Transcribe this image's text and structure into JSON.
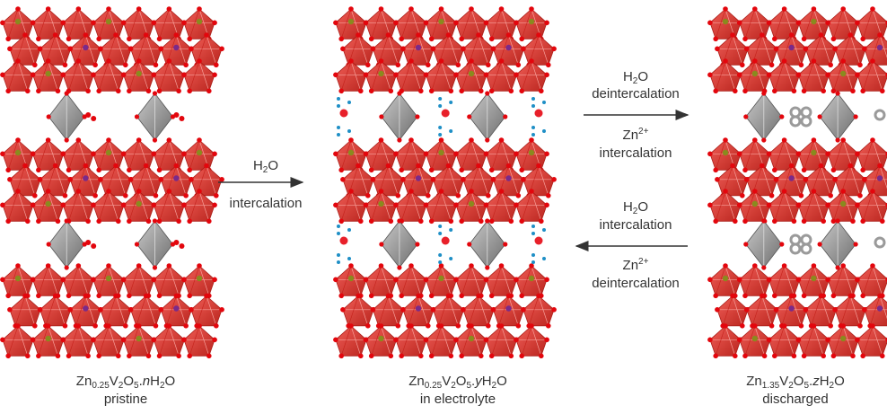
{
  "panels": [
    {
      "id": "pristine",
      "formula": {
        "el1": "Zn",
        "sub1": "0.25",
        "el2": "V",
        "sub2": "2",
        "el3": "O",
        "sub3": "5",
        "sep": ".",
        "var": "n",
        "el4": "H",
        "sub4": "2",
        "el5": "O"
      },
      "label": "pristine"
    },
    {
      "id": "electrolyte",
      "formula": {
        "el1": "Zn",
        "sub1": "0.25",
        "el2": "V",
        "sub2": "2",
        "el3": "O",
        "sub3": "5",
        "sep": ".",
        "var": "y",
        "el4": "H",
        "sub4": "2",
        "el5": "O"
      },
      "label": "in electrolyte"
    },
    {
      "id": "discharged",
      "formula": {
        "el1": "Zn",
        "sub1": "1.35",
        "el2": "V",
        "sub2": "2",
        "el3": "O",
        "sub3": "5",
        "sep": ".",
        "var": "z",
        "el4": "H",
        "sub4": "2",
        "el5": "O"
      },
      "label": "discharged"
    }
  ],
  "arrows": {
    "a1": {
      "top_h": "H",
      "top_sub": "2",
      "top_o": "O",
      "bottom": "intercalation"
    },
    "a2": {
      "l1_h": "H",
      "l1_sub": "2",
      "l1_o": "O",
      "l2": "deintercalation",
      "l3_zn": "Zn",
      "l3_sup": "2+",
      "l4": "intercalation"
    },
    "a3": {
      "l1_h": "H",
      "l1_sub": "2",
      "l1_o": "O",
      "l2": "intercalation",
      "l3_zn": "Zn",
      "l3_sup": "2+",
      "l4": "deintercalation"
    }
  },
  "colors": {
    "octahedron": "#e0322c",
    "octahedron_dark": "#a8150f",
    "oxygen": "#e3060d",
    "zinc_tetra": "#8f8f8f",
    "vanadium": "#7a2a8a",
    "water_o": "#e8202a",
    "water_h": "#1e8fc6",
    "zn_ion": "#9a9a9a",
    "arrow": "#333333"
  }
}
